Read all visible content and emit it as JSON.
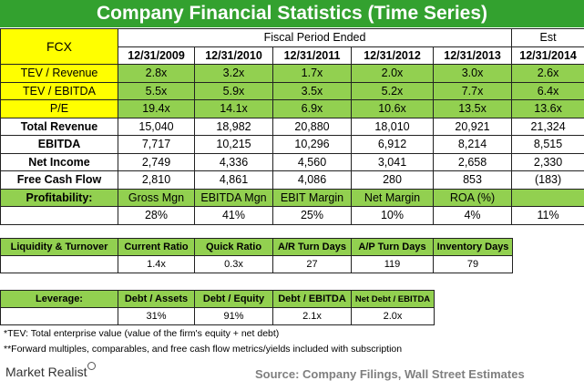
{
  "title": "Company Financial Statistics (Time Series)",
  "header": {
    "ticker": "FCX",
    "group_label": "Fiscal Period Ended",
    "est_label": "Est",
    "periods": [
      "12/31/2009",
      "12/31/2010",
      "12/31/2011",
      "12/31/2012",
      "12/31/2013",
      "12/31/2014"
    ]
  },
  "multiples": [
    {
      "label": "TEV / Revenue",
      "values": [
        "2.8x",
        "3.2x",
        "1.7x",
        "2.0x",
        "3.0x",
        "2.6x"
      ]
    },
    {
      "label": "TEV / EBITDA",
      "values": [
        "5.5x",
        "5.9x",
        "3.5x",
        "5.2x",
        "7.7x",
        "6.4x"
      ]
    },
    {
      "label": "P/E",
      "values": [
        "19.4x",
        "14.1x",
        "6.9x",
        "10.6x",
        "13.5x",
        "13.6x"
      ]
    }
  ],
  "financials": [
    {
      "label": "Total Revenue",
      "values": [
        "15,040",
        "18,982",
        "20,880",
        "18,010",
        "20,921",
        "21,324"
      ]
    },
    {
      "label": "EBITDA",
      "values": [
        "7,717",
        "10,215",
        "10,296",
        "6,912",
        "8,214",
        "8,515"
      ]
    },
    {
      "label": "Net Income",
      "values": [
        "2,749",
        "4,336",
        "4,560",
        "3,041",
        "2,658",
        "2,330"
      ]
    },
    {
      "label": "Free Cash Flow",
      "values": [
        "2,810",
        "4,861",
        "4,086",
        "280",
        "853",
        "(183)"
      ]
    }
  ],
  "profitability": {
    "label": "Profitability:",
    "headers": [
      "Gross Mgn",
      "EBITDA Mgn",
      "EBIT Margin",
      "Net Margin",
      "ROA (%)",
      ""
    ],
    "values": [
      "28%",
      "41%",
      "25%",
      "10%",
      "4%",
      "11%"
    ]
  },
  "liquidity": {
    "label": "Liquidity & Turnover",
    "headers": [
      "Current Ratio",
      "Quick Ratio",
      "A/R Turn Days",
      "A/P Turn Days",
      "Inventory Days"
    ],
    "values": [
      "1.4x",
      "0.3x",
      "27",
      "119",
      "79"
    ]
  },
  "leverage": {
    "label": "Leverage:",
    "headers": [
      "Debt / Assets",
      "Debt / Equity",
      "Debt / EBITDA",
      "Net Debt / EBITDA"
    ],
    "values": [
      "31%",
      "91%",
      "2.1x",
      "2.0x"
    ]
  },
  "footnotes": [
    "*TEV: Total enterprise value (value of the firm's equity + net debt)",
    "**Forward multiples, comparables, and free cash flow metrics/yields included with subscription"
  ],
  "logo": "Market Realist",
  "source": "Source: Company Filings, Wall Street Estimates",
  "colors": {
    "title_bg": "#33a12f",
    "yellow": "#ffff00",
    "green": "#92d050",
    "source": "#7f7f7f"
  }
}
